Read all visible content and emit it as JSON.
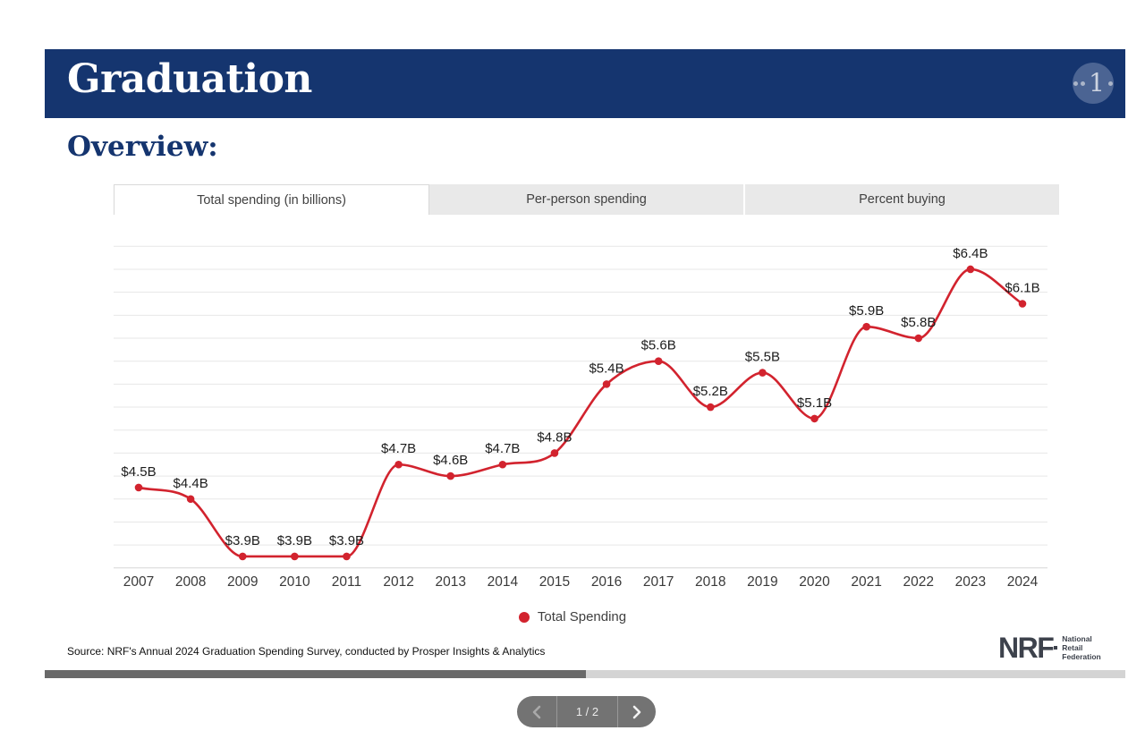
{
  "header": {
    "title": "Graduation",
    "badge_number": "1"
  },
  "section_heading": "Overview:",
  "tabs": [
    {
      "label": "Total spending (in billions)",
      "active": true
    },
    {
      "label": "Per-person spending",
      "active": false
    },
    {
      "label": "Percent buying",
      "active": false
    }
  ],
  "chart_data": {
    "type": "line",
    "title": "Total spending (in billions)",
    "categories": [
      "2007",
      "2008",
      "2009",
      "2010",
      "2011",
      "2012",
      "2013",
      "2014",
      "2015",
      "2016",
      "2017",
      "2018",
      "2019",
      "2020",
      "2021",
      "2022",
      "2023",
      "2024"
    ],
    "series": [
      {
        "name": "Total Spending",
        "color": "#d2232e",
        "values": [
          4.5,
          4.4,
          3.9,
          3.9,
          3.9,
          4.7,
          4.6,
          4.7,
          4.8,
          5.4,
          5.6,
          5.2,
          5.5,
          5.1,
          5.9,
          5.8,
          6.4,
          6.1
        ],
        "point_labels": [
          "$4.5B",
          "$4.4B",
          "$3.9B",
          "$3.9B",
          "$3.9B",
          "$4.7B",
          "$4.6B",
          "$4.7B",
          "$4.8B",
          "$5.4B",
          "$5.6B",
          "$5.2B",
          "$5.5B",
          "$5.1B",
          "$5.9B",
          "$5.8B",
          "$6.4B",
          "$6.1B"
        ]
      }
    ],
    "ylim": [
      3.8,
      6.6
    ],
    "grid_step": 0.2,
    "grid": "horizontal-only",
    "y_axis_labels_visible": false,
    "legend_position": "bottom",
    "legend_label": "Total Spending"
  },
  "source_note": "Source: NRF's Annual 2024 Graduation Spending Survey, conducted by Prosper Insights & Analytics",
  "logo": {
    "abbr": "NRF",
    "lines": [
      "National",
      "Retail",
      "Federation"
    ]
  },
  "pagination": {
    "page_label": "1 / 2"
  },
  "colors": {
    "navy": "#15356f",
    "red": "#d2232e",
    "tab_inactive_bg": "#e9e9e9",
    "gridline": "#e7e7e7",
    "axis_line": "#d7d7d7",
    "label_text": "#1c1c1c",
    "pagination_bg": "#737373",
    "scrollbar_thumb": "#696969"
  }
}
